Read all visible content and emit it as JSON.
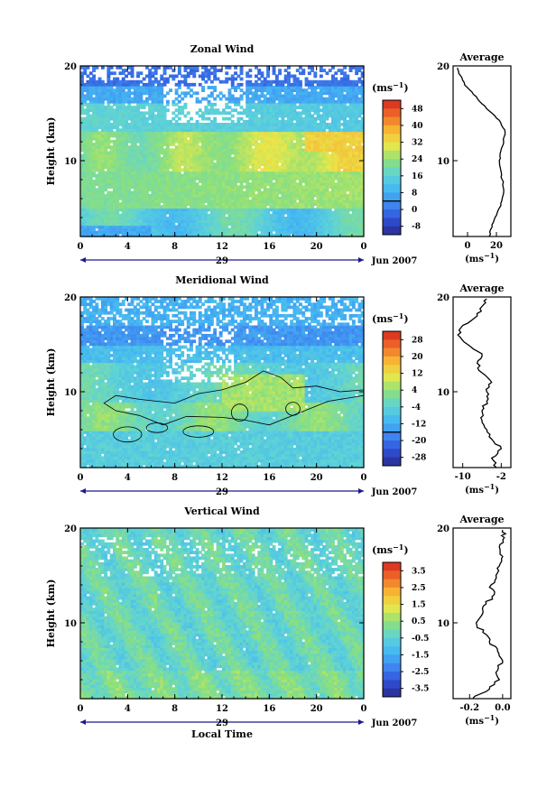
{
  "chart_data": [
    {
      "type": "heatmap",
      "title": "Zonal Wind",
      "xlabel": "",
      "ylabel": "Height (km)",
      "xlim": [
        0,
        24
      ],
      "ylim": [
        2,
        20
      ],
      "x_ticks": [
        "0",
        "4",
        "8",
        "12",
        "16",
        "20",
        "0"
      ],
      "y_ticks": [
        "10",
        "20"
      ],
      "date_label": "Jun 2007",
      "day_label": "29",
      "colorbar_unit": "(ms",
      "colorbar_sup": "−1",
      "colorbar_range": [
        -8,
        52
      ],
      "colorbar_labels": [
        "48",
        "40",
        "32",
        "24",
        "16",
        "8",
        "0",
        "-8"
      ],
      "average_panel": {
        "title": "Average",
        "xlabel": "(ms",
        "xlabel_sup": "−1",
        "x_ticks": [
          "0",
          "20"
        ],
        "xlim": [
          -10,
          30
        ],
        "y_ticks": [
          "10",
          "20"
        ],
        "profile": {
          "height_km": [
            2,
            3,
            4,
            5,
            6,
            7,
            8,
            9,
            10,
            11,
            12,
            13,
            14,
            15,
            16,
            17,
            18,
            19,
            19.8
          ],
          "value": [
            15,
            17,
            19,
            22,
            24,
            25,
            24,
            23,
            22,
            23,
            25,
            26,
            23,
            17,
            10,
            4,
            -2,
            -5,
            -7
          ]
        }
      }
    },
    {
      "type": "heatmap",
      "title": "Meridional Wind",
      "xlabel": "",
      "ylabel": "Height (km)",
      "xlim": [
        0,
        24
      ],
      "ylim": [
        2,
        20
      ],
      "x_ticks": [
        "0",
        "4",
        "8",
        "12",
        "16",
        "20",
        "0"
      ],
      "y_ticks": [
        "10",
        "20"
      ],
      "date_label": "Jun 2007",
      "day_label": "29",
      "colorbar_unit": "(ms",
      "colorbar_sup": "−1",
      "colorbar_range": [
        -30,
        30
      ],
      "colorbar_labels": [
        "28",
        "20",
        "12",
        "4",
        "-4",
        "-12",
        "-20",
        "-28"
      ],
      "average_panel": {
        "title": "Average",
        "xlabel": "(ms",
        "xlabel_sup": "−1",
        "x_ticks": [
          "-10",
          "-2"
        ],
        "xlim": [
          -12,
          0
        ],
        "y_ticks": [
          "10",
          "20"
        ],
        "profile": {
          "height_km": [
            2,
            3,
            4,
            5,
            6,
            7,
            8,
            9,
            10,
            11,
            12,
            13,
            14,
            15,
            16,
            17,
            18,
            19,
            19.8
          ],
          "value": [
            -3,
            -4,
            -2,
            -4,
            -5,
            -6,
            -6,
            -5,
            -5,
            -4,
            -6,
            -7,
            -6,
            -9,
            -11,
            -10,
            -7,
            -6,
            -5
          ]
        }
      }
    },
    {
      "type": "heatmap",
      "title": "Vertical Wind",
      "xlabel": "Local Time",
      "ylabel": "Height (km)",
      "xlim": [
        0,
        24
      ],
      "ylim": [
        2,
        20
      ],
      "x_ticks": [
        "0",
        "4",
        "8",
        "12",
        "16",
        "20",
        "0"
      ],
      "y_ticks": [
        "10",
        "20"
      ],
      "date_label": "Jun 2007",
      "day_label": "29",
      "colorbar_unit": "(ms",
      "colorbar_sup": "−1",
      "colorbar_range": [
        -4,
        4
      ],
      "colorbar_labels": [
        "3.5",
        "2.5",
        "1.5",
        "0.5",
        "-0.5",
        "-1.5",
        "-2.5",
        "-3.5"
      ],
      "average_panel": {
        "title": "Average",
        "xlabel": "(ms",
        "xlabel_sup": "−1",
        "x_ticks": [
          "-0.2",
          "0.0"
        ],
        "xlim": [
          -0.3,
          0.05
        ],
        "y_ticks": [
          "10",
          "20"
        ],
        "profile": {
          "height_km": [
            2,
            3,
            4,
            5,
            6,
            7,
            8,
            9,
            10,
            11,
            12,
            13,
            14,
            15,
            16,
            17,
            18,
            19,
            19.8
          ],
          "value": [
            -0.18,
            -0.08,
            -0.02,
            -0.03,
            0.0,
            -0.03,
            -0.08,
            -0.12,
            -0.16,
            -0.12,
            -0.1,
            -0.05,
            -0.07,
            -0.04,
            -0.02,
            0.0,
            -0.02,
            0.01,
            0.0
          ]
        }
      }
    }
  ],
  "colors": {
    "colormap": [
      "#2a2a8c",
      "#2f4fd6",
      "#3f86f0",
      "#45b8f2",
      "#5fd3d6",
      "#8ee07a",
      "#e8e84a",
      "#f7b534",
      "#ef6a2a",
      "#d7261e"
    ],
    "contour": "#000000",
    "axis": "#1a1a8a"
  }
}
